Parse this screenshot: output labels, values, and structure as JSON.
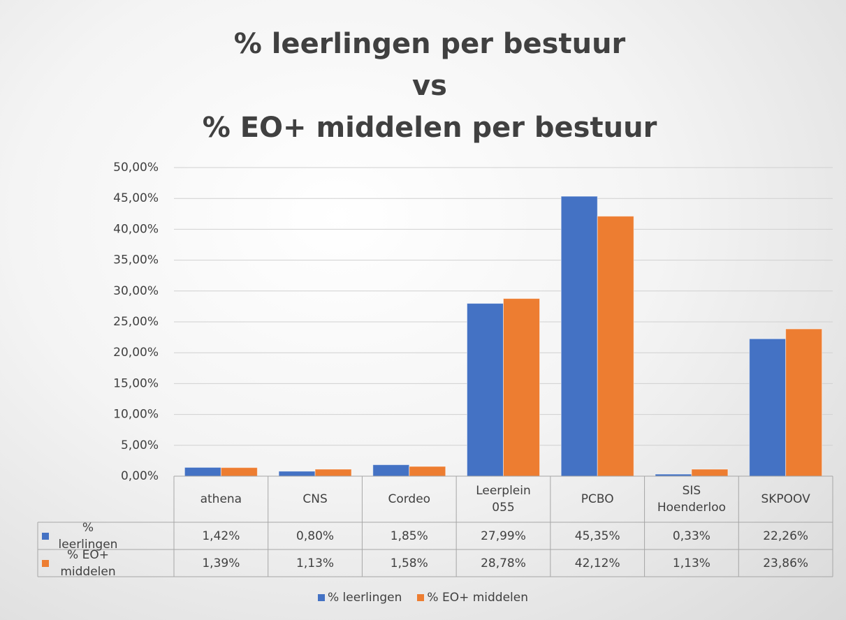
{
  "chart_data": {
    "type": "bar",
    "title": [
      "% leerlingen per bestuur",
      "vs",
      "% EO+ middelen per bestuur"
    ],
    "categories": [
      "athena",
      "CNS",
      "Cordeo",
      "Leerplein 055",
      "PCBO",
      "SIS Hoenderloo",
      "SKPOOV"
    ],
    "series": [
      {
        "name": "% leerlingen",
        "color": "#4472c4",
        "values": [
          1.42,
          0.8,
          1.85,
          27.99,
          45.35,
          0.33,
          22.26
        ],
        "value_labels": [
          "1,42%",
          "0,80%",
          "1,85%",
          "27,99%",
          "45,35%",
          "0,33%",
          "22,26%"
        ]
      },
      {
        "name": "% EO+ middelen",
        "color": "#ed7d31",
        "values": [
          1.39,
          1.13,
          1.58,
          28.78,
          42.12,
          1.13,
          23.86
        ],
        "value_labels": [
          "1,39%",
          "1,13%",
          "1,58%",
          "28,78%",
          "42,12%",
          "1,13%",
          "23,86%"
        ]
      }
    ],
    "ylim": [
      0,
      50
    ],
    "yticks": [
      {
        "value": 0,
        "label": "0,00%"
      },
      {
        "value": 5,
        "label": "5,00%"
      },
      {
        "value": 10,
        "label": "10,00%"
      },
      {
        "value": 15,
        "label": "15,00%"
      },
      {
        "value": 20,
        "label": "20,00%"
      },
      {
        "value": 25,
        "label": "25,00%"
      },
      {
        "value": 30,
        "label": "30,00%"
      },
      {
        "value": 35,
        "label": "35,00%"
      },
      {
        "value": 40,
        "label": "40,00%"
      },
      {
        "value": 45,
        "label": "45,00%"
      },
      {
        "value": 50,
        "label": "50,00%"
      }
    ],
    "grid": true,
    "legend": "bottom"
  }
}
